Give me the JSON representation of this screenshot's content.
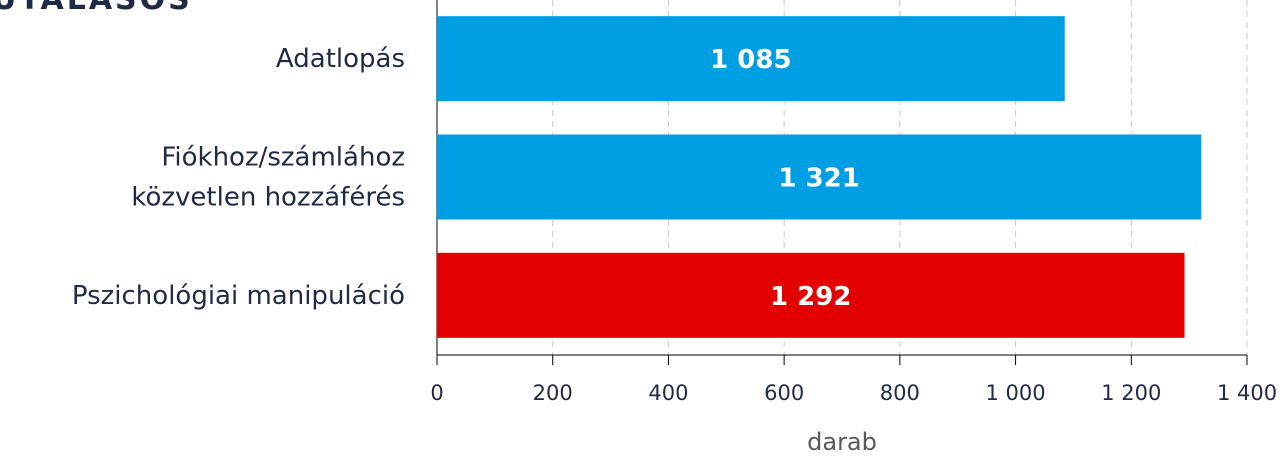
{
  "chart_data": {
    "type": "barh",
    "title": "UTALÁSOS",
    "categories": [
      "Adatlopás",
      "Fiókhoz/számlához\nközvetlen hozzáférés",
      "Pszichológiai manipuláció"
    ],
    "values": [
      1085,
      1321,
      1292
    ],
    "value_labels": [
      "1 085",
      "1 321",
      "1 292"
    ],
    "colors": [
      "#009fe3",
      "#009fe3",
      "#e30000"
    ],
    "xlim": [
      0,
      1400
    ],
    "xticks": [
      0,
      200,
      400,
      600,
      800,
      {
        "value": 1000,
        "label": "1 000"
      },
      {
        "value": 1200,
        "label": "1 200"
      },
      {
        "value": 1400,
        "label": "1 400"
      }
    ],
    "xlabel": "darab",
    "grid": true
  }
}
